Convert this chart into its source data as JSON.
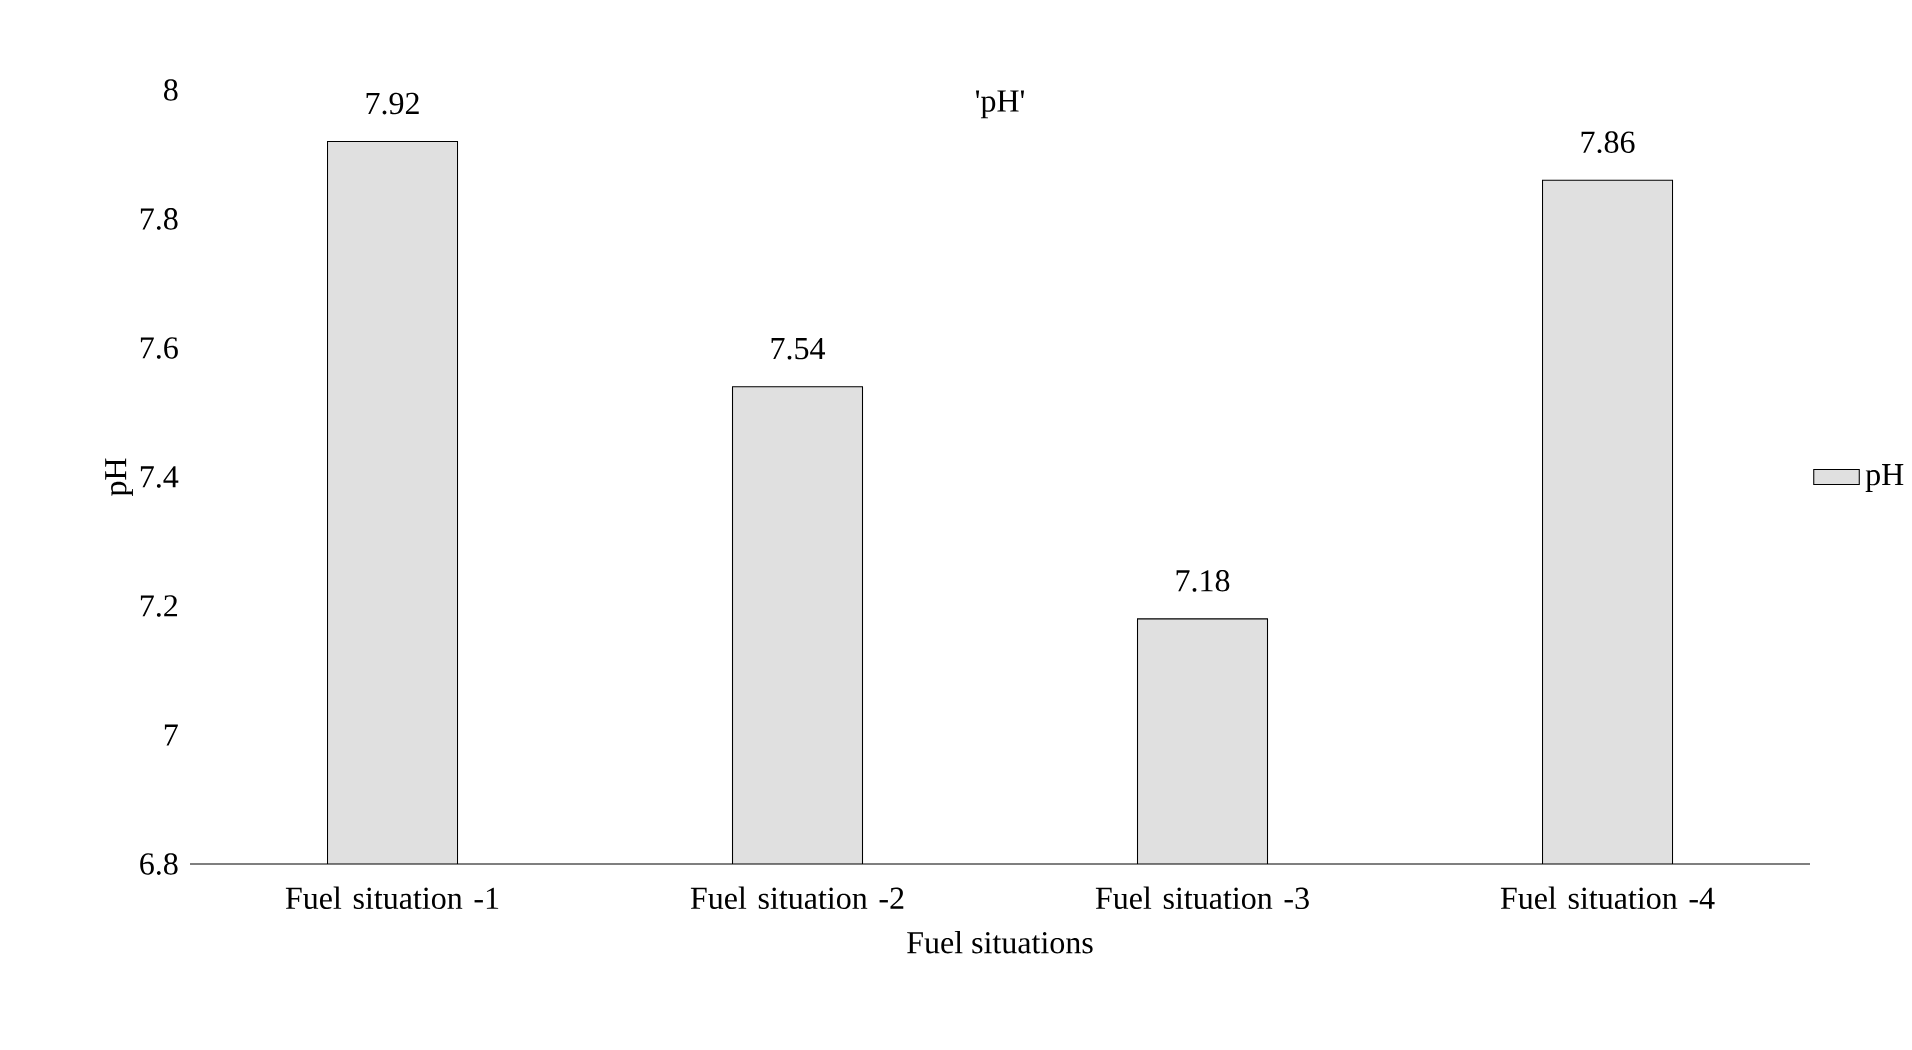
{
  "chart_data": {
    "type": "bar",
    "title": "'pH'",
    "xlabel": "Fuel situations",
    "ylabel": "pH",
    "categories": [
      "Fuel situation -1",
      "Fuel situation -2",
      "Fuel situation -3",
      "Fuel situation -4"
    ],
    "series": [
      {
        "name": "pH",
        "color": "#e0e0e0",
        "values": [
          7.92,
          7.54,
          7.18,
          7.86
        ],
        "value_labels": [
          "7.92",
          "7.54",
          "7.18",
          "7.86"
        ]
      }
    ],
    "ylim": [
      6.8,
      8
    ],
    "yticks": [
      6.8,
      7,
      7.2,
      7.4,
      7.6,
      7.8,
      8
    ],
    "legend": "right",
    "grid": false
  }
}
